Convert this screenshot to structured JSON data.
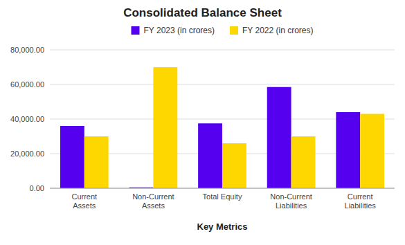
{
  "chart_data": {
    "type": "bar",
    "title": "Consolidated Balance Sheet",
    "xlabel": "Key Metrics",
    "categories": [
      "Current\nAssets",
      "Non-Current\nAssets",
      "Total Equity",
      "Non-Current\nLiabilities",
      "Current\nLiabilities"
    ],
    "series": [
      {
        "name": "FY 2023 (in crores)",
        "color": "#5500ee",
        "values": [
          36000,
          500,
          37500,
          58500,
          44000
        ]
      },
      {
        "name": "FY 2022 (in crores)",
        "color": "#FFD700",
        "values": [
          30000,
          70000,
          26000,
          30000,
          43000
        ]
      }
    ],
    "ylim": [
      0,
      80000
    ],
    "yticks": [
      {
        "value": 0,
        "label": "0.00"
      },
      {
        "value": 20000,
        "label": "20,000.00"
      },
      {
        "value": 40000,
        "label": "40,000.00"
      },
      {
        "value": 60000,
        "label": "60,000.00"
      },
      {
        "value": 80000,
        "label": "80,000.00"
      }
    ],
    "grid": true,
    "legend": "top"
  }
}
